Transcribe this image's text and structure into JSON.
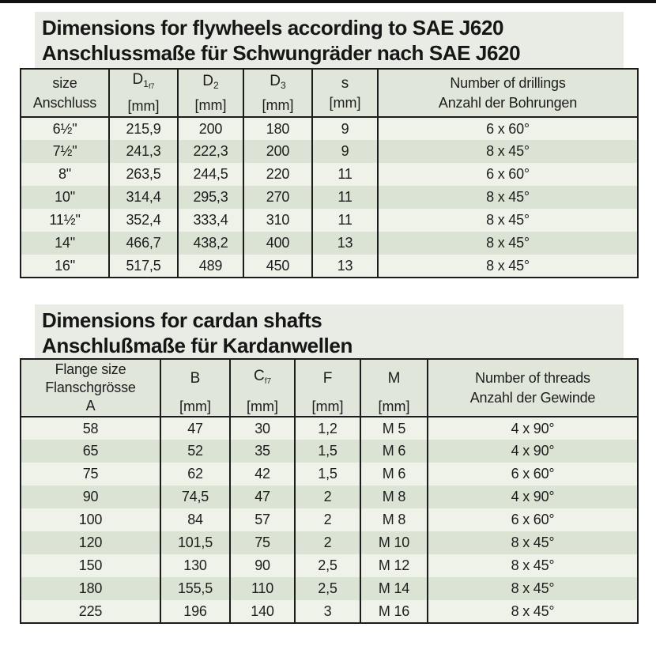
{
  "theme": {
    "title_block_bg": "#e8ece4",
    "header_bg": "#e0e7da",
    "row_light_bg": "#eef2e9",
    "row_green_bg": "#dbe3d4",
    "border_color": "#1c1c1c",
    "text_color": "#1d1d1d",
    "top_rule_color": "#111111"
  },
  "flywheels": {
    "title_en": "Dimensions for flywheels according to SAE J620",
    "title_de": "Anschlussmaße für Schwungräder nach SAE J620",
    "header": {
      "col1_line1": "size",
      "col1_line2": "Anschluss",
      "d1_symbol": "D",
      "d1_sub": "1",
      "d1_subsub": "f7",
      "d2_symbol": "D",
      "d2_sub": "2",
      "d3_symbol": "D",
      "d3_sub": "3",
      "s_symbol": "s",
      "unit": "[mm]",
      "col6_line1": "Number of drillings",
      "col6_line2": "Anzahl der Bohrungen"
    },
    "rows": [
      [
        "6½\"",
        "215,9",
        "200",
        "180",
        "9",
        "6 x 60°"
      ],
      [
        "7½\"",
        "241,3",
        "222,3",
        "200",
        "9",
        "8 x 45°"
      ],
      [
        "8\"",
        "263,5",
        "244,5",
        "220",
        "11",
        "6 x 60°"
      ],
      [
        "10\"",
        "314,4",
        "295,3",
        "270",
        "11",
        "8 x 45°"
      ],
      [
        "11½\"",
        "352,4",
        "333,4",
        "310",
        "11",
        "8 x 45°"
      ],
      [
        "14\"",
        "466,7",
        "438,2",
        "400",
        "13",
        "8 x 45°"
      ],
      [
        "16\"",
        "517,5",
        "489",
        "450",
        "13",
        "8 x 45°"
      ]
    ]
  },
  "cardan": {
    "title_en": "Dimensions for cardan shafts",
    "title_de": "Anschlußmaße für Kardanwellen",
    "header": {
      "col1_line1": "Flange size",
      "col1_line2": "Flanschgrösse",
      "col1_line3": "A",
      "b_symbol": "B",
      "c_symbol": "C",
      "c_sub": "f7",
      "f_symbol": "F",
      "m_symbol": "M",
      "unit": "[mm]",
      "col6_line1": "Number of threads",
      "col6_line2": "Anzahl der Gewinde"
    },
    "rows": [
      [
        "58",
        "47",
        "30",
        "1,2",
        "M 5",
        "4 x 90°"
      ],
      [
        "65",
        "52",
        "35",
        "1,5",
        "M 6",
        "4 x 90°"
      ],
      [
        "75",
        "62",
        "42",
        "1,5",
        "M 6",
        "6 x 60°"
      ],
      [
        "90",
        "74,5",
        "47",
        "2",
        "M 8",
        "4 x 90°"
      ],
      [
        "100",
        "84",
        "57",
        "2",
        "M 8",
        "6 x 60°"
      ],
      [
        "120",
        "101,5",
        "75",
        "2",
        "M 10",
        "8 x 45°"
      ],
      [
        "150",
        "130",
        "90",
        "2,5",
        "M 12",
        "8 x 45°"
      ],
      [
        "180",
        "155,5",
        "110",
        "2,5",
        "M 14",
        "8 x 45°"
      ],
      [
        "225",
        "196",
        "140",
        "3",
        "M 16",
        "8 x 45°"
      ]
    ]
  }
}
